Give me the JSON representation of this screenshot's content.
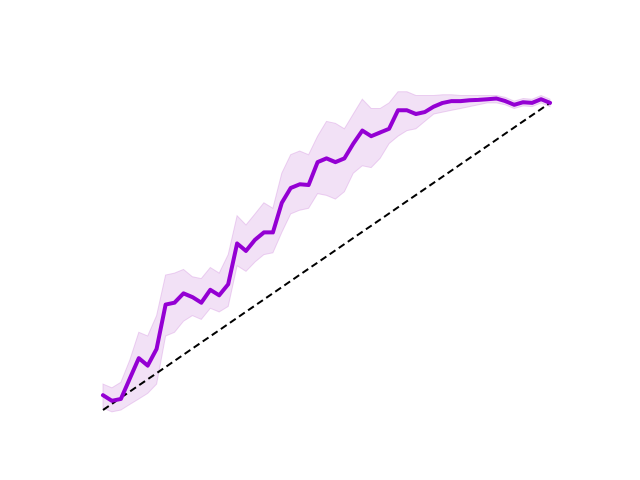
{
  "chart_data": {
    "type": "line",
    "title": "",
    "xlabel": "",
    "ylabel": "",
    "axes_visible": false,
    "grid": false,
    "legend": "none",
    "xlim": [
      0,
      1
    ],
    "ylim": [
      0,
      1
    ],
    "colors": {
      "series": "#9400d3",
      "band": "#dba8e6",
      "reference": "#000000"
    },
    "series": [
      {
        "x": [
          0.0,
          0.02,
          0.04,
          0.06,
          0.08,
          0.1,
          0.12,
          0.14,
          0.16,
          0.18,
          0.2,
          0.22,
          0.24,
          0.26,
          0.28,
          0.3,
          0.32,
          0.34,
          0.36,
          0.38,
          0.4,
          0.42,
          0.44,
          0.46,
          0.48,
          0.5,
          0.52,
          0.54,
          0.56,
          0.58,
          0.6,
          0.62,
          0.64,
          0.66,
          0.68,
          0.7,
          0.72,
          0.74,
          0.76,
          0.78,
          0.8,
          0.82,
          0.84,
          0.86,
          0.88,
          0.9,
          0.92,
          0.94,
          0.96,
          0.98,
          1.0
        ],
        "y": [
          0.04,
          0.025,
          0.03,
          0.085,
          0.14,
          0.12,
          0.165,
          0.285,
          0.29,
          0.315,
          0.305,
          0.29,
          0.325,
          0.31,
          0.34,
          0.45,
          0.43,
          0.46,
          0.48,
          0.48,
          0.56,
          0.6,
          0.61,
          0.608,
          0.67,
          0.68,
          0.67,
          0.68,
          0.72,
          0.755,
          0.74,
          0.75,
          0.76,
          0.81,
          0.81,
          0.8,
          0.805,
          0.82,
          0.83,
          0.835,
          0.835,
          0.837,
          0.838,
          0.84,
          0.842,
          0.835,
          0.825,
          0.832,
          0.83,
          0.84,
          0.83
        ],
        "y_lower": [
          0.005,
          -0.005,
          0.0,
          0.015,
          0.03,
          0.045,
          0.07,
          0.2,
          0.21,
          0.24,
          0.255,
          0.245,
          0.275,
          0.265,
          0.28,
          0.39,
          0.375,
          0.4,
          0.42,
          0.425,
          0.48,
          0.53,
          0.54,
          0.545,
          0.585,
          0.58,
          0.57,
          0.59,
          0.64,
          0.66,
          0.655,
          0.68,
          0.72,
          0.74,
          0.755,
          0.76,
          0.78,
          0.8,
          0.805,
          0.81,
          0.815,
          0.82,
          0.825,
          0.83,
          0.83,
          0.825,
          0.815,
          0.822,
          0.82,
          0.83,
          0.82
        ],
        "y_upper": [
          0.07,
          0.06,
          0.075,
          0.135,
          0.21,
          0.2,
          0.255,
          0.365,
          0.37,
          0.38,
          0.36,
          0.355,
          0.385,
          0.37,
          0.42,
          0.525,
          0.5,
          0.53,
          0.56,
          0.545,
          0.64,
          0.69,
          0.7,
          0.69,
          0.74,
          0.78,
          0.775,
          0.76,
          0.8,
          0.84,
          0.815,
          0.815,
          0.83,
          0.86,
          0.86,
          0.85,
          0.85,
          0.85,
          0.852,
          0.852,
          0.85,
          0.85,
          0.85,
          0.85,
          0.85,
          0.845,
          0.835,
          0.842,
          0.84,
          0.85,
          0.84
        ]
      },
      {
        "x": [
          0,
          1
        ],
        "y": [
          0,
          0.83
        ]
      }
    ]
  }
}
